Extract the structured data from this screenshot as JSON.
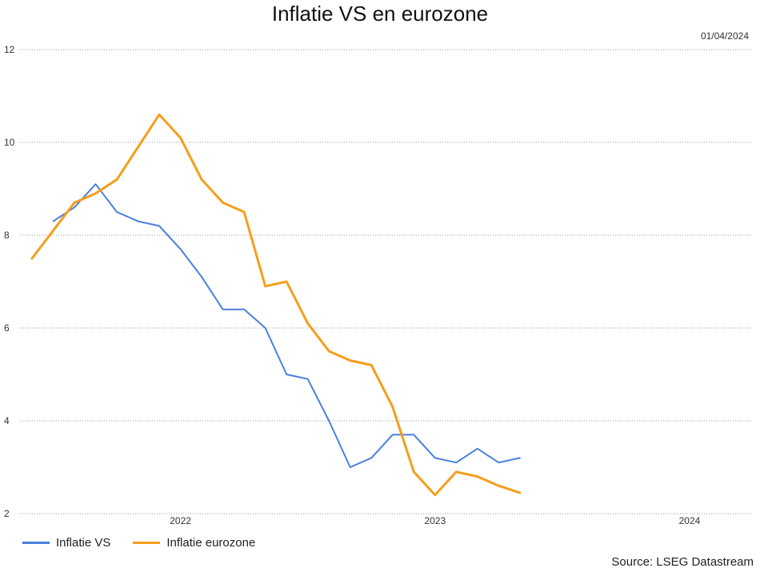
{
  "chart_data": {
    "type": "line",
    "title": "Inflatie VS en eurozone",
    "date": "01/04/2024",
    "source": "Source: LSEG Datastream",
    "ylim": [
      2,
      12
    ],
    "yticks": [
      2,
      4,
      6,
      8,
      10,
      12
    ],
    "xlim": [
      "2021-06",
      "2024-03"
    ],
    "xticks": [
      {
        "label": "2022",
        "x": "2022-01"
      },
      {
        "label": "2023",
        "x": "2023-01"
      },
      {
        "label": "2024",
        "x": "2024-01"
      }
    ],
    "grid": true,
    "legend_position": "bottom-left",
    "series": [
      {
        "name": "Inflatie VS",
        "color": "#4a7fe0",
        "x": [
          "2021-07",
          "2021-08",
          "2021-09",
          "2021-10",
          "2021-11",
          "2021-12",
          "2022-01",
          "2022-02",
          "2022-03",
          "2022-04",
          "2022-05",
          "2022-06",
          "2022-07",
          "2022-08",
          "2022-09",
          "2022-10",
          "2022-11",
          "2022-12",
          "2023-01",
          "2023-02",
          "2023-03",
          "2023-04",
          "2023-05",
          "2023-06",
          "2023-07",
          "2023-08",
          "2023-09",
          "2023-10"
        ],
        "values": [
          8.3,
          8.6,
          9.1,
          8.5,
          8.3,
          8.2,
          7.7,
          7.1,
          6.4,
          6.4,
          6.0,
          5.0,
          4.9,
          4.0,
          3.0,
          3.2,
          3.7,
          3.7,
          3.2,
          3.1,
          3.4,
          3.1,
          3.2,
          null,
          null,
          null,
          null,
          null
        ]
      },
      {
        "name": "Inflatie eurozone",
        "color": "#f59e1b",
        "x": [
          "2021-06",
          "2021-07",
          "2021-08",
          "2021-09",
          "2021-10",
          "2021-11",
          "2021-12",
          "2022-01",
          "2022-02",
          "2022-03",
          "2022-04",
          "2022-05",
          "2022-06",
          "2022-07",
          "2022-08",
          "2022-09",
          "2022-10",
          "2022-11",
          "2022-12",
          "2023-01",
          "2023-02",
          "2023-03",
          "2023-04",
          "2023-05",
          "2023-06",
          "2023-07",
          "2023-08",
          "2023-09",
          "2023-10"
        ],
        "values": [
          7.5,
          8.1,
          8.7,
          8.9,
          9.2,
          9.9,
          10.6,
          10.1,
          9.2,
          8.7,
          8.5,
          6.9,
          7.0,
          6.1,
          5.5,
          5.3,
          5.2,
          4.3,
          2.9,
          2.4,
          2.9,
          2.8,
          2.6,
          2.45,
          null,
          null,
          null,
          null,
          null
        ]
      }
    ]
  }
}
